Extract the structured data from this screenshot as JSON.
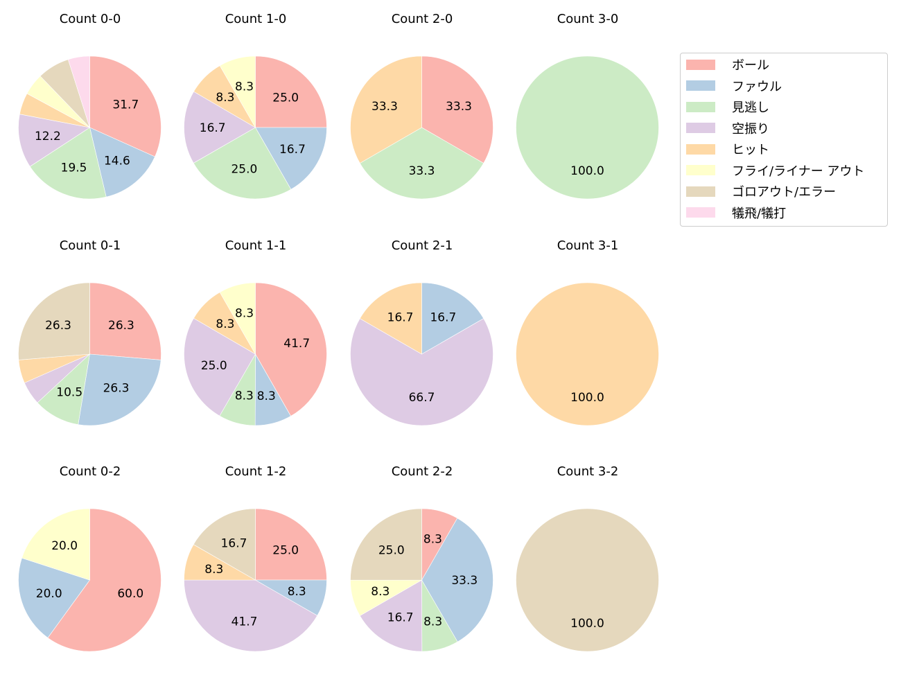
{
  "legend": {
    "items": [
      {
        "label": "ボール",
        "color": "#fbb4ae"
      },
      {
        "label": "ファウル",
        "color": "#b3cde3"
      },
      {
        "label": "見逃し",
        "color": "#ccebc5"
      },
      {
        "label": "空振り",
        "color": "#decbe4"
      },
      {
        "label": "ヒット",
        "color": "#fed9a6"
      },
      {
        "label": "フライ/ライナー アウト",
        "color": "#ffffcc"
      },
      {
        "label": "ゴロアウト/エラー",
        "color": "#e5d8bd"
      },
      {
        "label": "犠飛/犠打",
        "color": "#fddaec"
      }
    ]
  },
  "chart_data": {
    "type": "pie",
    "categories": [
      "ボール",
      "ファウル",
      "見逃し",
      "空振り",
      "ヒット",
      "フライ/ライナー アウト",
      "ゴロアウト/エラー",
      "犠飛/犠打"
    ],
    "colors": [
      "#fbb4ae",
      "#b3cde3",
      "#ccebc5",
      "#decbe4",
      "#fed9a6",
      "#ffffcc",
      "#e5d8bd",
      "#fddaec"
    ],
    "start_angle_deg": 90,
    "direction": "clockwise",
    "label_format": "%.1f",
    "label_threshold_pct": 8,
    "panels": [
      {
        "title": "Count 0-0",
        "row": 0,
        "col": 0,
        "values": [
          31.7,
          14.6,
          19.5,
          12.2,
          4.9,
          4.9,
          7.3,
          4.9
        ]
      },
      {
        "title": "Count 1-0",
        "row": 0,
        "col": 1,
        "values": [
          25.0,
          16.7,
          25.0,
          16.7,
          8.3,
          8.3,
          0,
          0
        ]
      },
      {
        "title": "Count 2-0",
        "row": 0,
        "col": 2,
        "values": [
          33.3,
          0,
          33.3,
          0,
          33.3,
          0,
          0,
          0
        ]
      },
      {
        "title": "Count 3-0",
        "row": 0,
        "col": 3,
        "values": [
          0,
          0,
          100.0,
          0,
          0,
          0,
          0,
          0
        ]
      },
      {
        "title": "Count 0-1",
        "row": 1,
        "col": 0,
        "values": [
          26.3,
          26.3,
          10.5,
          5.3,
          5.3,
          0,
          26.3,
          0
        ]
      },
      {
        "title": "Count 1-1",
        "row": 1,
        "col": 1,
        "values": [
          41.7,
          8.3,
          8.3,
          25.0,
          8.3,
          8.3,
          0,
          0
        ]
      },
      {
        "title": "Count 2-1",
        "row": 1,
        "col": 2,
        "values": [
          0,
          16.7,
          0,
          66.7,
          16.7,
          0,
          0,
          0
        ]
      },
      {
        "title": "Count 3-1",
        "row": 1,
        "col": 3,
        "values": [
          0,
          0,
          0,
          0,
          100.0,
          0,
          0,
          0
        ]
      },
      {
        "title": "Count 0-2",
        "row": 2,
        "col": 0,
        "values": [
          60.0,
          20.0,
          0,
          0,
          0,
          20.0,
          0,
          0
        ]
      },
      {
        "title": "Count 1-2",
        "row": 2,
        "col": 1,
        "values": [
          25.0,
          8.3,
          0,
          41.7,
          8.3,
          0,
          16.7,
          0
        ]
      },
      {
        "title": "Count 2-2",
        "row": 2,
        "col": 2,
        "values": [
          8.3,
          33.3,
          8.3,
          16.7,
          0,
          8.3,
          25.0,
          0
        ]
      },
      {
        "title": "Count 3-2",
        "row": 2,
        "col": 3,
        "values": [
          0,
          0,
          0,
          0,
          0,
          0,
          100.0,
          0
        ]
      }
    ]
  }
}
